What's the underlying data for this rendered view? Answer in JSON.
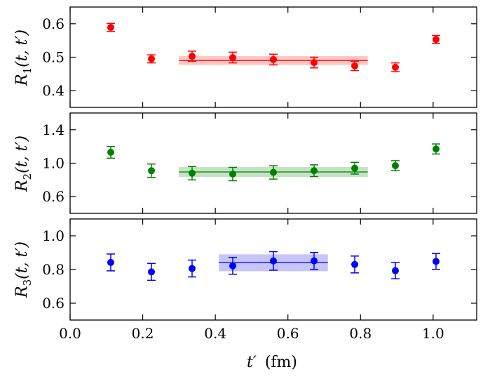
{
  "chart_data": {
    "type": "scatter",
    "x_axis": {
      "label_main": "t′",
      "label_unit": "(fm)",
      "range": [
        0.0,
        1.12
      ],
      "ticks": [
        0.0,
        0.2,
        0.4,
        0.6,
        0.8,
        1.0
      ],
      "tick_labels": [
        "0.0",
        "0.2",
        "0.4",
        "0.6",
        "0.8",
        "1.0"
      ]
    },
    "panels": [
      {
        "id": "r1",
        "color": "#ff0000",
        "band_color": "#ff8a8a",
        "ylabel_main": "R",
        "ylabel_sub": "1",
        "ylabel_args": "(t, t′)",
        "ylim": [
          0.35,
          0.65
        ],
        "yticks": [
          0.4,
          0.5,
          0.6
        ],
        "ytick_labels": [
          "0.4",
          "0.5",
          "0.6"
        ],
        "points": [
          {
            "x": 0.112,
            "y": 0.589,
            "err": 0.012
          },
          {
            "x": 0.224,
            "y": 0.495,
            "err": 0.012
          },
          {
            "x": 0.336,
            "y": 0.503,
            "err": 0.015
          },
          {
            "x": 0.448,
            "y": 0.499,
            "err": 0.016
          },
          {
            "x": 0.56,
            "y": 0.493,
            "err": 0.016
          },
          {
            "x": 0.672,
            "y": 0.484,
            "err": 0.016
          },
          {
            "x": 0.784,
            "y": 0.474,
            "err": 0.014
          },
          {
            "x": 0.896,
            "y": 0.47,
            "err": 0.013
          },
          {
            "x": 1.008,
            "y": 0.553,
            "err": 0.012
          }
        ],
        "fit": {
          "x_start": 0.3,
          "x_end": 0.82,
          "value": 0.49,
          "err": 0.013
        }
      },
      {
        "id": "r2",
        "color": "#008000",
        "band_color": "#88c888",
        "ylabel_main": "R",
        "ylabel_sub": "2",
        "ylabel_args": "(t, t′)",
        "ylim": [
          0.4,
          1.6
        ],
        "yticks": [
          0.6,
          1.0,
          1.4
        ],
        "ytick_labels": [
          "0.6",
          "1.0",
          "1.4"
        ],
        "points": [
          {
            "x": 0.112,
            "y": 1.13,
            "err": 0.07
          },
          {
            "x": 0.224,
            "y": 0.91,
            "err": 0.08
          },
          {
            "x": 0.336,
            "y": 0.88,
            "err": 0.08
          },
          {
            "x": 0.448,
            "y": 0.87,
            "err": 0.08
          },
          {
            "x": 0.56,
            "y": 0.89,
            "err": 0.08
          },
          {
            "x": 0.672,
            "y": 0.91,
            "err": 0.07
          },
          {
            "x": 0.784,
            "y": 0.94,
            "err": 0.07
          },
          {
            "x": 0.896,
            "y": 0.97,
            "err": 0.06
          },
          {
            "x": 1.008,
            "y": 1.17,
            "err": 0.06
          }
        ],
        "fit": {
          "x_start": 0.3,
          "x_end": 0.82,
          "value": 0.895,
          "err": 0.06
        }
      },
      {
        "id": "r3",
        "color": "#0000ff",
        "band_color": "#8c8cf0",
        "ylabel_main": "R",
        "ylabel_sub": "3",
        "ylabel_args": "(t, t′)",
        "ylim": [
          0.5,
          1.1
        ],
        "yticks": [
          0.6,
          0.8,
          1.0
        ],
        "ytick_labels": [
          "0.6",
          "0.8",
          "1.0"
        ],
        "points": [
          {
            "x": 0.112,
            "y": 0.842,
            "err": 0.05
          },
          {
            "x": 0.224,
            "y": 0.786,
            "err": 0.05
          },
          {
            "x": 0.336,
            "y": 0.806,
            "err": 0.05
          },
          {
            "x": 0.448,
            "y": 0.822,
            "err": 0.05
          },
          {
            "x": 0.56,
            "y": 0.851,
            "err": 0.055
          },
          {
            "x": 0.672,
            "y": 0.851,
            "err": 0.05
          },
          {
            "x": 0.784,
            "y": 0.83,
            "err": 0.05
          },
          {
            "x": 0.896,
            "y": 0.793,
            "err": 0.048
          },
          {
            "x": 1.008,
            "y": 0.848,
            "err": 0.047
          }
        ],
        "fit": {
          "x_start": 0.41,
          "x_end": 0.71,
          "value": 0.84,
          "err": 0.05
        }
      }
    ]
  }
}
